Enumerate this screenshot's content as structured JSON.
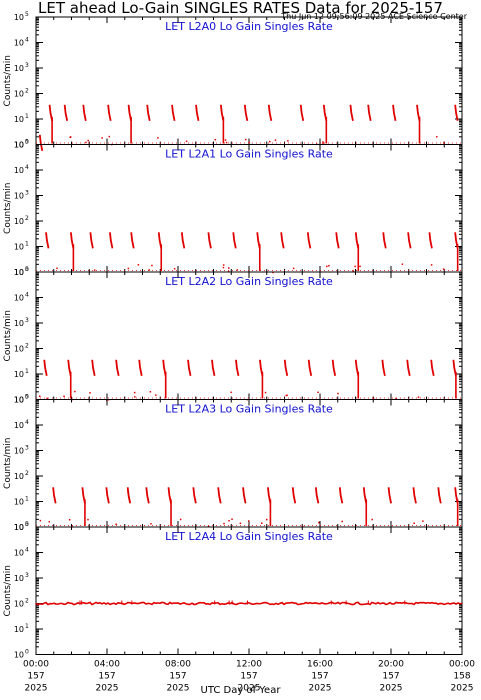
{
  "header": {
    "title": "LET ahead Lo-Gain SINGLES RATES Data for 2025-157",
    "timestamp": "Thu Jun 12 09:56:09 2025 ACE Science Center"
  },
  "chart_data": [
    {
      "type": "line",
      "title": "LET L2A0 Lo Gain Singles Rate",
      "ylabel": "Counts/min",
      "y_scale": "log",
      "ylim": [
        1,
        100000
      ],
      "y_ticks": [
        "10^0",
        "10^1",
        "10^2",
        "10^3",
        "10^4",
        "10^5"
      ],
      "x": [
        0.3,
        0.85,
        1.7,
        2.75,
        4.15,
        5.3,
        6.35,
        7.75,
        9.1,
        10.5,
        11.85,
        13.2,
        15.0,
        16.3,
        17.8,
        18.8,
        20.2,
        21.55,
        23.7
      ],
      "values": [
        2,
        30,
        30,
        30,
        30,
        30,
        30,
        30,
        30,
        30,
        30,
        30,
        30,
        30,
        30,
        30,
        30,
        30,
        30
      ],
      "color": "#e00000"
    },
    {
      "type": "line",
      "title": "LET L2A1 Lo Gain Singles Rate",
      "ylabel": "Counts/min",
      "y_scale": "log",
      "ylim": [
        1,
        100000
      ],
      "y_ticks": [
        "10^0",
        "10^1",
        "10^2",
        "10^3",
        "10^4",
        "10^5"
      ],
      "x": [
        0.65,
        2.05,
        3.15,
        4.25,
        5.45,
        7.0,
        8.3,
        9.8,
        11.2,
        12.55,
        13.9,
        15.4,
        17.0,
        18.1,
        19.65,
        21.05,
        22.25,
        23.7
      ],
      "values": [
        30,
        30,
        30,
        30,
        30,
        30,
        30,
        30,
        30,
        30,
        30,
        30,
        30,
        30,
        30,
        30,
        30,
        30
      ],
      "color": "#e00000"
    },
    {
      "type": "line",
      "title": "LET L2A2 Lo Gain Singles Rate",
      "ylabel": "Counts/min",
      "y_scale": "log",
      "ylim": [
        1,
        100000
      ],
      "y_ticks": [
        "10^0",
        "10^1",
        "10^2",
        "10^3",
        "10^4",
        "10^5"
      ],
      "x": [
        0.55,
        1.9,
        3.25,
        4.6,
        5.9,
        7.25,
        8.65,
        10.0,
        11.35,
        12.7,
        14.1,
        15.45,
        16.8,
        18.1,
        19.6,
        21.0,
        22.35,
        23.6
      ],
      "values": [
        30,
        30,
        30,
        30,
        30,
        30,
        30,
        30,
        30,
        30,
        30,
        30,
        30,
        30,
        30,
        30,
        30,
        30
      ],
      "color": "#e00000"
    },
    {
      "type": "line",
      "title": "LET L2A3 Lo Gain Singles Rate",
      "ylabel": "Counts/min",
      "y_scale": "log",
      "ylim": [
        1,
        100000
      ],
      "y_ticks": [
        "10^0",
        "10^1",
        "10^2",
        "10^3",
        "10^4",
        "10^5"
      ],
      "x": [
        1.05,
        2.7,
        4.05,
        5.25,
        6.3,
        7.55,
        8.95,
        10.35,
        11.75,
        13.15,
        14.55,
        15.85,
        17.2,
        18.55,
        19.95,
        21.35,
        22.75,
        23.7
      ],
      "values": [
        30,
        30,
        30,
        30,
        30,
        30,
        30,
        30,
        30,
        30,
        30,
        30,
        30,
        30,
        30,
        30,
        30,
        30
      ],
      "color": "#e00000"
    },
    {
      "type": "line",
      "title": "LET L2A4 Lo Gain Singles Rate",
      "ylabel": "Counts/min",
      "y_scale": "log",
      "ylim": [
        1,
        100000
      ],
      "y_ticks": [
        "10^0",
        "10^1",
        "10^2",
        "10^3",
        "10^4",
        "10^5"
      ],
      "x": [
        0,
        24
      ],
      "values": [
        100,
        100
      ],
      "color": "#e00000"
    }
  ],
  "x_axis": {
    "title": "UTC Day of Year",
    "range_hours": [
      0,
      24
    ],
    "tick_labels": [
      {
        "time": "00:00",
        "doy": "157",
        "year": "2025",
        "hour": 0
      },
      {
        "time": "04:00",
        "doy": "157",
        "year": "2025",
        "hour": 4
      },
      {
        "time": "08:00",
        "doy": "157",
        "year": "2025",
        "hour": 8
      },
      {
        "time": "12:00",
        "doy": "157",
        "year": "2025",
        "hour": 12
      },
      {
        "time": "16:00",
        "doy": "157",
        "year": "2025",
        "hour": 16
      },
      {
        "time": "20:00",
        "doy": "157",
        "year": "2025",
        "hour": 20
      },
      {
        "time": "00:00",
        "doy": "158",
        "year": "2025",
        "hour": 24
      }
    ]
  },
  "colors": {
    "data": "#e00000",
    "panel_title": "#1010d0",
    "axis": "#000000"
  }
}
